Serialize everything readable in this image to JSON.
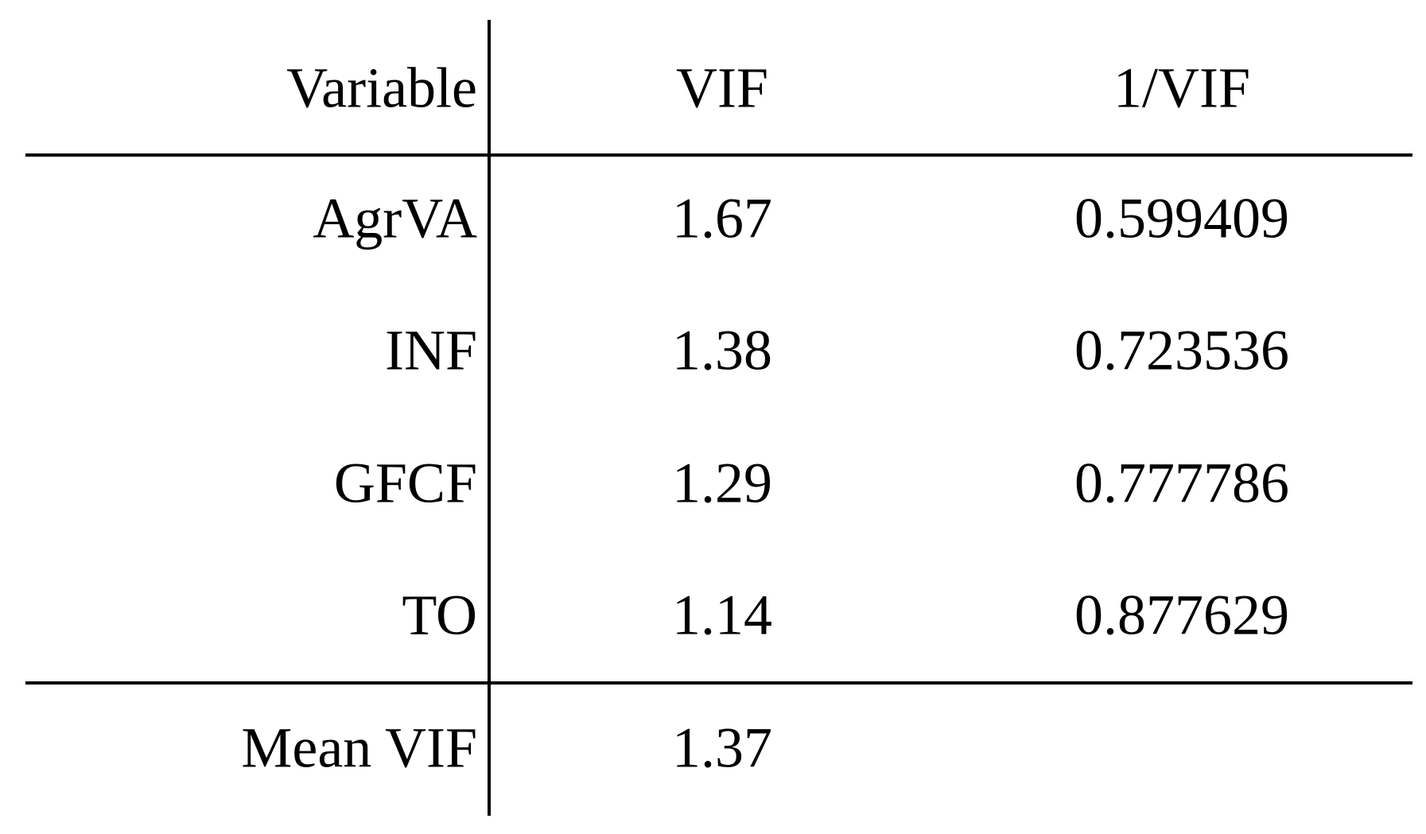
{
  "table": {
    "header": [
      "Variable",
      "VIF",
      "1/VIF"
    ],
    "rows": [
      [
        "AgrVA",
        1.67,
        0.599409
      ],
      [
        "INF",
        1.38,
        0.723536
      ],
      [
        "GFCF",
        1.29,
        0.777786
      ],
      [
        "TO",
        1.14,
        0.877629
      ]
    ],
    "footer": [
      "Mean VIF",
      1.37
    ]
  }
}
